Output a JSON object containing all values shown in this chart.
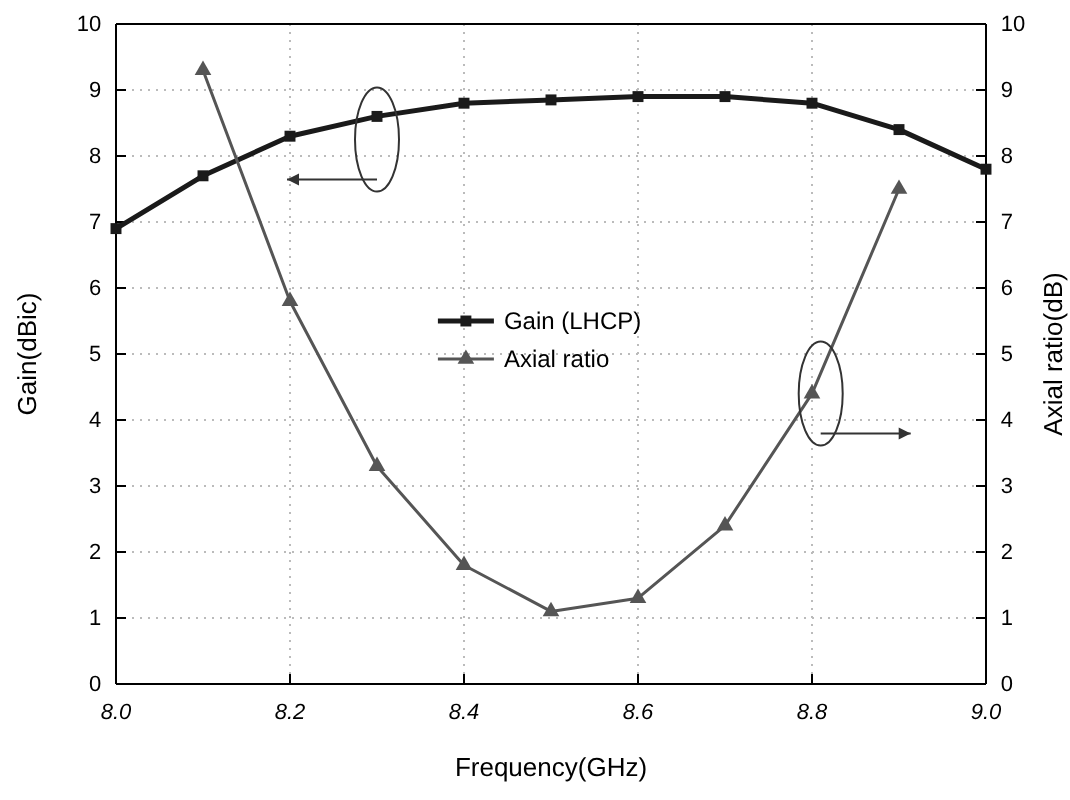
{
  "chart_data": {
    "type": "line",
    "xlabel": "Frequency(GHz)",
    "ylabel": "Gain(dBic)",
    "y2label": "Axial ratio(dB)",
    "xlim": [
      8.0,
      9.0
    ],
    "xticks": [
      {
        "value": 8.0,
        "label": "8.0"
      },
      {
        "value": 8.2,
        "label": "8.2"
      },
      {
        "value": 8.4,
        "label": "8.4"
      },
      {
        "value": 8.6,
        "label": "8.6"
      },
      {
        "value": 8.8,
        "label": "8.8"
      },
      {
        "value": 9.0,
        "label": "9.0"
      }
    ],
    "ylim": [
      0,
      10
    ],
    "yticks": [
      0,
      1,
      2,
      3,
      4,
      5,
      6,
      7,
      8,
      9,
      10
    ],
    "y2lim": [
      0,
      10
    ],
    "y2ticks": [
      0,
      1,
      2,
      3,
      4,
      5,
      6,
      7,
      8,
      9,
      10
    ],
    "grid": true,
    "legend": "center",
    "line_style": "solid",
    "series": [
      {
        "name": "Gain (LHCP)",
        "color": "#1a1a1a",
        "marker": "square",
        "x": [
          8.0,
          8.1,
          8.2,
          8.3,
          8.4,
          8.5,
          8.6,
          8.7,
          8.8,
          8.9,
          9.0
        ],
        "values": [
          6.9,
          7.7,
          8.3,
          8.6,
          8.8,
          8.85,
          8.9,
          8.9,
          8.8,
          8.4,
          7.8
        ]
      },
      {
        "name": "Axial ratio",
        "color": "#555555",
        "marker": "triangle",
        "axis": "y2",
        "x": [
          8.1,
          8.2,
          8.3,
          8.4,
          8.5,
          8.6,
          8.7,
          8.8,
          8.9
        ],
        "values": [
          9.3,
          5.8,
          3.3,
          1.8,
          1.1,
          1.3,
          2.4,
          4.4,
          7.5
        ]
      }
    ]
  }
}
